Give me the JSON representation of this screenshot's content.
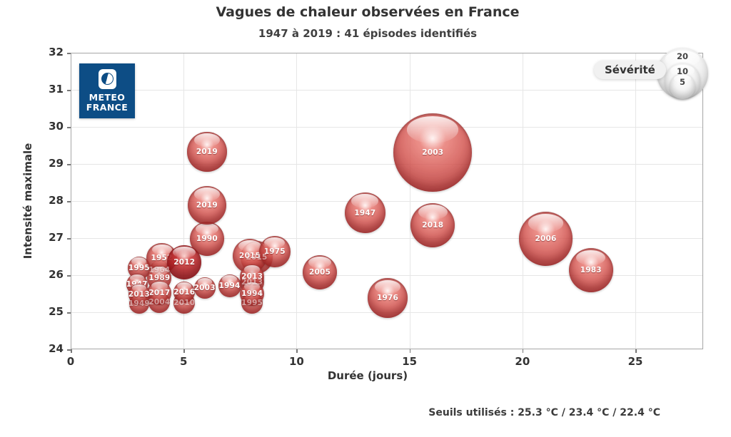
{
  "header": {
    "title": "Vagues de chaleur observées en France",
    "subtitle": "1947 à 2019 : 41 épisodes identifiés"
  },
  "logo": {
    "line1": "METEO",
    "line2": "FRANCE",
    "brand_color": "#0d4d85"
  },
  "legend": {
    "label": "Sévérité"
  },
  "footer": {
    "thresholds": "Seuils utilisés : 25.3 °C / 23.4 °C / 22.4 °C"
  },
  "chart_data": {
    "type": "scatter",
    "title": "Vagues de chaleur observées en France",
    "subtitle": "1947 à 2019 : 41 épisodes identifiés",
    "xlabel": "Durée (jours)",
    "ylabel": "Intensité maximale",
    "xlim": [
      0,
      28
    ],
    "ylim": [
      24,
      32
    ],
    "xticks": [
      0,
      5,
      10,
      15,
      20,
      25
    ],
    "yticks": [
      24,
      25,
      26,
      27,
      28,
      29,
      30,
      31,
      32
    ],
    "grid": true,
    "legend_position": "top-right",
    "size_legend": [
      20,
      10,
      5
    ],
    "bubble_color": "#c0392b",
    "points": [
      {
        "year": "1964",
        "duration": 3.9,
        "intensity": 26.15,
        "severity": 3,
        "faint": true
      },
      {
        "year": "1949",
        "duration": 3.0,
        "intensity": 25.25,
        "severity": 3,
        "faint": true
      },
      {
        "year": "2004",
        "duration": 3.9,
        "intensity": 25.29,
        "severity": 3.5,
        "faint": true
      },
      {
        "year": "2010",
        "duration": 5.0,
        "intensity": 25.27,
        "severity": 3.5,
        "faint": true
      },
      {
        "year": "1995",
        "duration": 8.0,
        "intensity": 25.27,
        "severity": 3.5,
        "faint": true
      },
      {
        "year": "2015",
        "duration": 8.2,
        "intensity": 26.5,
        "severity": 8,
        "faint": true
      },
      {
        "year": "2013",
        "duration": 8.0,
        "intensity": 25.83,
        "severity": 4.5,
        "faint": true
      },
      {
        "year": "1995",
        "duration": 3.0,
        "intensity": 26.21,
        "severity": 4
      },
      {
        "year": "1952",
        "duration": 4.0,
        "intensity": 26.48,
        "severity": 7
      },
      {
        "year": "1947",
        "duration": 2.9,
        "intensity": 25.77,
        "severity": 3.5
      },
      {
        "year": "1989",
        "duration": 3.9,
        "intensity": 25.94,
        "severity": 4.5
      },
      {
        "year": "2017",
        "duration": 3.9,
        "intensity": 25.54,
        "severity": 4.5
      },
      {
        "year": "2013",
        "duration": 3.0,
        "intensity": 25.5,
        "severity": 3.5
      },
      {
        "year": "1990",
        "duration": 6.0,
        "intensity": 27.0,
        "severity": 9
      },
      {
        "year": "2019",
        "duration": 6.0,
        "intensity": 27.9,
        "severity": 11.5
      },
      {
        "year": "2019",
        "duration": 6.0,
        "intensity": 29.35,
        "severity": 12
      },
      {
        "year": "2016",
        "duration": 5.0,
        "intensity": 25.56,
        "severity": 3.5
      },
      {
        "year": "2012",
        "duration": 5.0,
        "intensity": 26.37,
        "severity": 9,
        "dark": true
      },
      {
        "year": "2003",
        "duration": 5.9,
        "intensity": 25.67,
        "severity": 3.5
      },
      {
        "year": "1994",
        "duration": 7.0,
        "intensity": 25.73,
        "severity": 4
      },
      {
        "year": "2015",
        "duration": 7.9,
        "intensity": 26.54,
        "severity": 9
      },
      {
        "year": "1975",
        "duration": 9.0,
        "intensity": 26.65,
        "severity": 7.5
      },
      {
        "year": "2013",
        "duration": 8.0,
        "intensity": 25.98,
        "severity": 4.5
      },
      {
        "year": "1994",
        "duration": 8.0,
        "intensity": 25.52,
        "severity": 4.5
      },
      {
        "year": "2005",
        "duration": 11.0,
        "intensity": 26.1,
        "severity": 9
      },
      {
        "year": "1976",
        "duration": 14.0,
        "intensity": 25.4,
        "severity": 12
      },
      {
        "year": "1947",
        "duration": 13.0,
        "intensity": 27.7,
        "severity": 13
      },
      {
        "year": "2003",
        "duration": 16.0,
        "intensity": 29.33,
        "severity": 47
      },
      {
        "year": "2018",
        "duration": 16.0,
        "intensity": 27.37,
        "severity": 15
      },
      {
        "year": "2006",
        "duration": 21.0,
        "intensity": 27.0,
        "severity": 22
      },
      {
        "year": "1983",
        "duration": 23.0,
        "intensity": 26.15,
        "severity": 15
      }
    ]
  }
}
